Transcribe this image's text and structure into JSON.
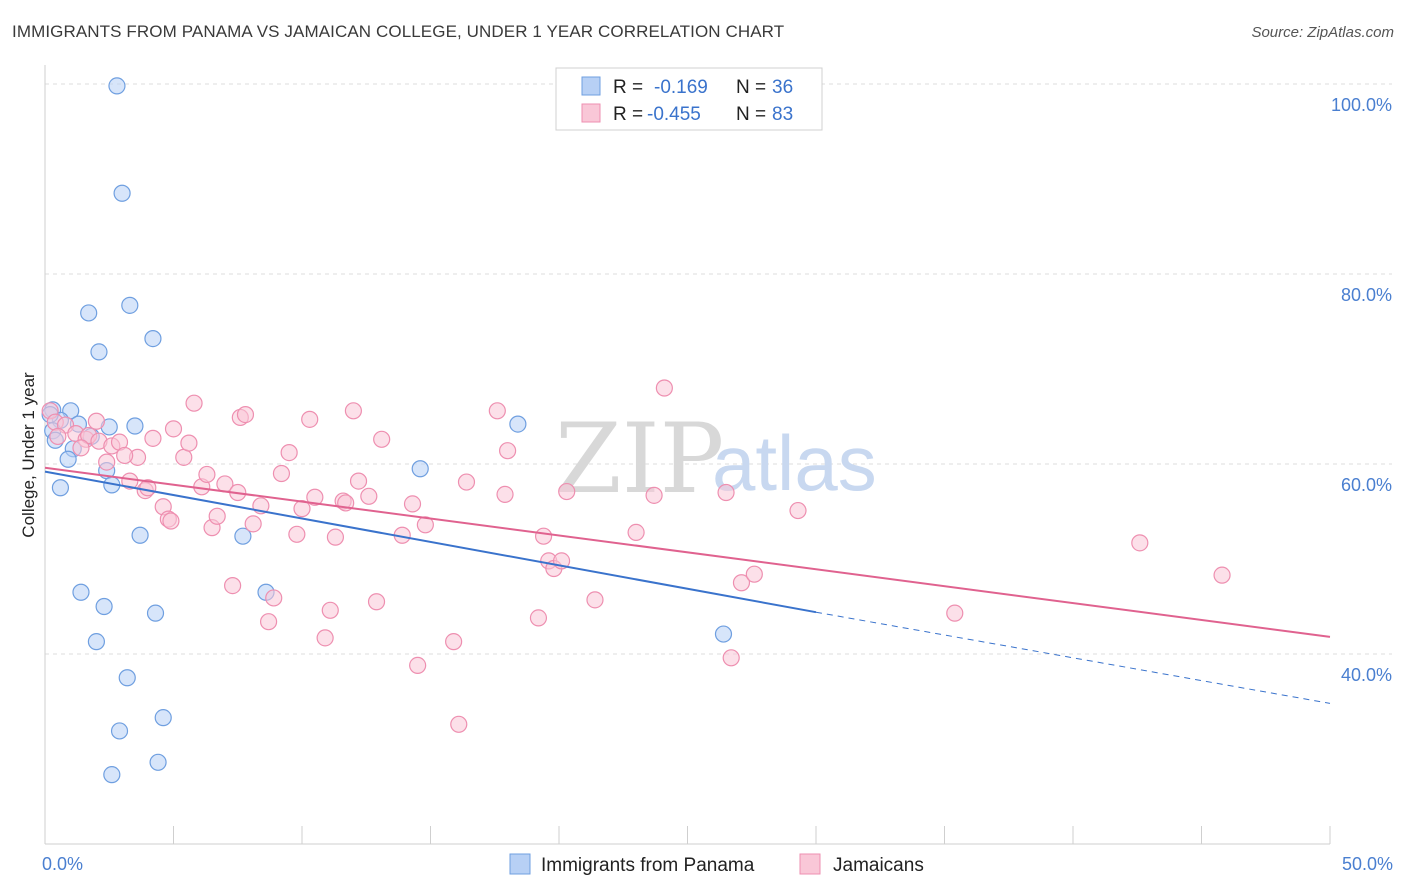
{
  "header": {
    "title": "IMMIGRANTS FROM PANAMA VS JAMAICAN COLLEGE, UNDER 1 YEAR CORRELATION CHART",
    "source": "Source: ZipAtlas.com"
  },
  "watermark": {
    "zip": "ZIP",
    "atlas": "atlas"
  },
  "legend": {
    "rows": [
      {
        "r_label": "R =",
        "r_value": "-0.169",
        "n_label": "N =",
        "n_value": "36",
        "fill": "#b7d0f5",
        "stroke": "#6f9fe0"
      },
      {
        "r_label": "R =",
        "r_value": "-0.455",
        "n_label": "N =",
        "n_value": "83",
        "fill": "#f9c7d7",
        "stroke": "#ee8fb0"
      }
    ]
  },
  "bottom_legend": [
    {
      "label": "Immigrants from Panama",
      "fill": "#b7d0f5",
      "stroke": "#6f9fe0"
    },
    {
      "label": "Jamaicans",
      "fill": "#f9c7d7",
      "stroke": "#ee8fb0"
    }
  ],
  "chart_data": {
    "type": "scatter",
    "title": "IMMIGRANTS FROM PANAMA VS JAMAICAN COLLEGE, UNDER 1 YEAR CORRELATION CHART",
    "xlabel": "",
    "ylabel": "College, Under 1 year",
    "xlim": [
      0,
      50
    ],
    "ylim": [
      20,
      102
    ],
    "x_tick_labels": [
      {
        "value": 0,
        "label": "0.0%"
      },
      {
        "value": 50,
        "label": "50.0%"
      }
    ],
    "y_tick_labels": [
      {
        "value": 100,
        "label": "100.0%"
      },
      {
        "value": 80,
        "label": "80.0%"
      },
      {
        "value": 60,
        "label": "60.0%"
      },
      {
        "value": 40,
        "label": "40.0%"
      }
    ],
    "grid": true,
    "legend_position": "top-center",
    "series": [
      {
        "name": "Immigrants from Panama",
        "color": "#6f9fe0",
        "fill": "#b7d0f5",
        "trend_color": "#3a73cc",
        "trend": {
          "x0": 0,
          "y0": 59.2,
          "x1": 30,
          "y1": 44.4,
          "dash_to_x": 50,
          "dash_to_y": 34.8
        },
        "points": [
          [
            2.8,
            99.8
          ],
          [
            3.0,
            88.5
          ],
          [
            3.3,
            76.7
          ],
          [
            1.7,
            75.9
          ],
          [
            4.2,
            73.2
          ],
          [
            2.1,
            71.8
          ],
          [
            0.3,
            65.7
          ],
          [
            1.0,
            65.6
          ],
          [
            0.6,
            64.6
          ],
          [
            1.3,
            64.2
          ],
          [
            0.3,
            63.5
          ],
          [
            2.5,
            63.9
          ],
          [
            1.8,
            62.9
          ],
          [
            0.4,
            62.5
          ],
          [
            1.1,
            61.6
          ],
          [
            3.5,
            64.0
          ],
          [
            0.9,
            60.5
          ],
          [
            2.4,
            59.3
          ],
          [
            0.6,
            57.5
          ],
          [
            2.6,
            57.8
          ],
          [
            14.6,
            59.5
          ],
          [
            18.4,
            64.2
          ],
          [
            3.7,
            52.5
          ],
          [
            7.7,
            52.4
          ],
          [
            1.4,
            46.5
          ],
          [
            2.3,
            45.0
          ],
          [
            8.6,
            46.5
          ],
          [
            4.3,
            44.3
          ],
          [
            2.0,
            41.3
          ],
          [
            26.4,
            42.1
          ],
          [
            3.2,
            37.5
          ],
          [
            4.6,
            33.3
          ],
          [
            2.9,
            31.9
          ],
          [
            4.4,
            28.6
          ],
          [
            2.6,
            27.3
          ],
          [
            0.2,
            65.2
          ]
        ]
      },
      {
        "name": "Jamaicans",
        "color": "#ee8fb0",
        "fill": "#f9c7d7",
        "trend_color": "#e0628f",
        "trend": {
          "x0": 0,
          "y0": 59.6,
          "x1": 50,
          "y1": 41.8
        },
        "points": [
          [
            0.2,
            65.6
          ],
          [
            0.4,
            64.4
          ],
          [
            0.8,
            64.1
          ],
          [
            1.2,
            63.2
          ],
          [
            1.6,
            62.6
          ],
          [
            1.7,
            63.0
          ],
          [
            2.1,
            62.4
          ],
          [
            2.4,
            60.2
          ],
          [
            2.6,
            61.9
          ],
          [
            2.9,
            62.3
          ],
          [
            3.3,
            58.2
          ],
          [
            3.6,
            60.7
          ],
          [
            3.9,
            57.2
          ],
          [
            4.2,
            62.7
          ],
          [
            4.0,
            57.5
          ],
          [
            4.6,
            55.5
          ],
          [
            4.8,
            54.2
          ],
          [
            5.0,
            63.7
          ],
          [
            5.4,
            60.7
          ],
          [
            5.6,
            62.2
          ],
          [
            5.8,
            66.4
          ],
          [
            6.1,
            57.6
          ],
          [
            6.3,
            58.9
          ],
          [
            6.5,
            53.3
          ],
          [
            6.7,
            54.5
          ],
          [
            7.0,
            57.9
          ],
          [
            7.3,
            47.2
          ],
          [
            7.6,
            64.9
          ],
          [
            7.8,
            65.2
          ],
          [
            8.1,
            53.7
          ],
          [
            8.4,
            55.6
          ],
          [
            8.7,
            43.4
          ],
          [
            8.9,
            45.9
          ],
          [
            9.2,
            59.0
          ],
          [
            9.5,
            61.2
          ],
          [
            9.8,
            52.6
          ],
          [
            10.0,
            55.3
          ],
          [
            10.3,
            64.7
          ],
          [
            10.5,
            56.5
          ],
          [
            10.9,
            41.7
          ],
          [
            11.1,
            44.6
          ],
          [
            11.3,
            52.3
          ],
          [
            11.6,
            56.1
          ],
          [
            12.0,
            65.6
          ],
          [
            12.2,
            58.2
          ],
          [
            12.6,
            56.6
          ],
          [
            12.9,
            45.5
          ],
          [
            13.1,
            62.6
          ],
          [
            13.9,
            52.5
          ],
          [
            14.3,
            55.8
          ],
          [
            14.5,
            38.8
          ],
          [
            14.8,
            53.6
          ],
          [
            15.9,
            41.3
          ],
          [
            16.1,
            32.6
          ],
          [
            16.4,
            58.1
          ],
          [
            17.6,
            65.6
          ],
          [
            17.9,
            56.8
          ],
          [
            18.0,
            61.4
          ],
          [
            19.2,
            43.8
          ],
          [
            19.4,
            52.4
          ],
          [
            19.6,
            49.8
          ],
          [
            19.8,
            49.0
          ],
          [
            20.1,
            49.8
          ],
          [
            20.3,
            57.1
          ],
          [
            21.4,
            45.7
          ],
          [
            23.0,
            52.8
          ],
          [
            23.7,
            56.7
          ],
          [
            24.1,
            68.0
          ],
          [
            26.5,
            57.0
          ],
          [
            26.7,
            39.6
          ],
          [
            27.1,
            47.5
          ],
          [
            27.6,
            48.4
          ],
          [
            29.3,
            55.1
          ],
          [
            35.4,
            44.3
          ],
          [
            42.6,
            51.7
          ],
          [
            45.8,
            48.3
          ],
          [
            0.5,
            62.9
          ],
          [
            1.4,
            61.7
          ],
          [
            2.0,
            64.5
          ],
          [
            3.1,
            60.9
          ],
          [
            4.9,
            54.0
          ],
          [
            7.5,
            57.0
          ],
          [
            11.7,
            55.9
          ]
        ]
      }
    ]
  }
}
